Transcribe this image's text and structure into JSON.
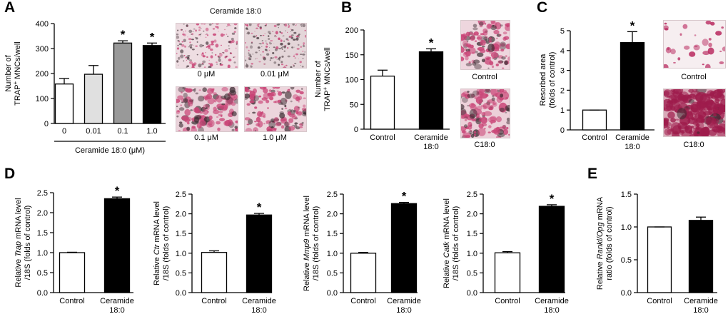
{
  "panel_labels": {
    "A": "A",
    "B": "B",
    "C": "C",
    "D": "D",
    "E": "E"
  },
  "micrographs": {
    "A_title": "Ceramide 18:0",
    "A_captions": [
      "0 μM",
      "0.01 μM",
      "0.1 μM",
      "1.0 μM"
    ],
    "B_captions": [
      "Control",
      "C18:0"
    ],
    "C_captions": [
      "Control",
      "C18:0"
    ]
  },
  "colors": {
    "white": "#ffffff",
    "light_gray": "#e0e0e0",
    "mid_gray": "#999999",
    "black": "#000000",
    "stain_pink": "#c94476"
  },
  "chart_data": [
    {
      "id": "A",
      "type": "bar",
      "ylabel_lines": [
        "Number of",
        "TRAP",
        "+",
        " MNCs/well"
      ],
      "categories": [
        "0",
        "0.01",
        "0.1",
        "1.0"
      ],
      "values": [
        158,
        197,
        322,
        312
      ],
      "errors": [
        22,
        35,
        9,
        10
      ],
      "significant": [
        false,
        false,
        true,
        true
      ],
      "bar_colors": [
        "#ffffff",
        "#e0e0e0",
        "#999999",
        "#000000"
      ],
      "xlabel": "Ceramide 18:0 (μM)",
      "ylim": [
        0,
        400
      ],
      "yticks": [
        0,
        100,
        200,
        300,
        400
      ],
      "ytick_labels": [
        "0",
        "100",
        "200",
        "300",
        "400"
      ]
    },
    {
      "id": "B",
      "type": "bar",
      "ylabel_lines": [
        "Number of",
        "TRAP",
        "+",
        " MNCs/well"
      ],
      "categories": [
        "Control",
        "Ceramide 18:0"
      ],
      "category_lines": [
        [
          "Control"
        ],
        [
          "Ceramide",
          "18:0"
        ]
      ],
      "values": [
        107,
        156
      ],
      "errors": [
        12,
        6
      ],
      "significant": [
        false,
        true
      ],
      "bar_colors": [
        "#ffffff",
        "#000000"
      ],
      "ylim": [
        0,
        200
      ],
      "yticks": [
        0,
        50,
        100,
        150,
        200
      ],
      "ytick_labels": [
        "0",
        "50",
        "100",
        "150",
        "200"
      ]
    },
    {
      "id": "C",
      "type": "bar",
      "ylabel_lines": [
        "Resorbed area",
        "(folds of control)"
      ],
      "categories": [
        "Control",
        "Ceramide 18:0"
      ],
      "category_lines": [
        [
          "Control"
        ],
        [
          "Ceramide",
          "18:0"
        ]
      ],
      "values": [
        1.0,
        4.4
      ],
      "errors": [
        0.0,
        0.55
      ],
      "significant": [
        false,
        true
      ],
      "bar_colors": [
        "#ffffff",
        "#000000"
      ],
      "ylim": [
        0,
        5
      ],
      "yticks": [
        0,
        1,
        2,
        3,
        4,
        5
      ],
      "ytick_labels": [
        "0",
        "1",
        "2",
        "3",
        "4",
        "5"
      ]
    },
    {
      "id": "D1",
      "type": "bar",
      "ylabel_prefix": "Relative ",
      "ylabel_gene": "Trap",
      "ylabel_suffix": " mRNA level",
      "ylabel_line2": "/18S (folds of control)",
      "categories": [
        "Control",
        "Ceramide 18:0"
      ],
      "category_lines": [
        [
          "Control"
        ],
        [
          "Ceramide",
          "18:0"
        ]
      ],
      "values": [
        1.0,
        2.35
      ],
      "errors": [
        0.01,
        0.04
      ],
      "significant": [
        false,
        true
      ],
      "bar_colors": [
        "#ffffff",
        "#000000"
      ],
      "ylim": [
        0,
        2.5
      ],
      "yticks": [
        0,
        0.5,
        1.0,
        1.5,
        2.0,
        2.5
      ],
      "ytick_labels": [
        "0.0",
        "0.5",
        "1.0",
        "1.5",
        "2.0",
        "2.5"
      ]
    },
    {
      "id": "D2",
      "type": "bar",
      "ylabel_prefix": "Relative ",
      "ylabel_gene": "Ctr",
      "ylabel_suffix": " mRNA level",
      "ylabel_line2": "/18S (folds of control)",
      "categories": [
        "Control",
        "Ceramide 18:0"
      ],
      "category_lines": [
        [
          "Control"
        ],
        [
          "Ceramide",
          "18:0"
        ]
      ],
      "values": [
        1.02,
        1.97
      ],
      "errors": [
        0.04,
        0.04
      ],
      "significant": [
        false,
        true
      ],
      "bar_colors": [
        "#ffffff",
        "#000000"
      ],
      "ylim": [
        0,
        2.5
      ],
      "yticks": [
        0,
        0.5,
        1.0,
        1.5,
        2.0,
        2.5
      ],
      "ytick_labels": [
        "0.0",
        "0.5",
        "1.0",
        "1.5",
        "2.0",
        "2.5"
      ]
    },
    {
      "id": "D3",
      "type": "bar",
      "ylabel_prefix": "Relative ",
      "ylabel_gene": "Mmp9",
      "ylabel_suffix": " mRNA level",
      "ylabel_line2": "/18S (folds of control)",
      "categories": [
        "Control",
        "Ceramide 18:0"
      ],
      "category_lines": [
        [
          "Control"
        ],
        [
          "Ceramide",
          "18:0"
        ]
      ],
      "values": [
        1.0,
        2.26
      ],
      "errors": [
        0.02,
        0.03
      ],
      "significant": [
        false,
        true
      ],
      "bar_colors": [
        "#ffffff",
        "#000000"
      ],
      "ylim": [
        0,
        2.5
      ],
      "yticks": [
        0,
        0.5,
        1.0,
        1.5,
        2.0,
        2.5
      ],
      "ytick_labels": [
        "0.0",
        "0.5",
        "1.0",
        "1.5",
        "2.0",
        "2.5"
      ]
    },
    {
      "id": "D4",
      "type": "bar",
      "ylabel_prefix": "Relative ",
      "ylabel_gene": "Catk",
      "ylabel_suffix": " mRNA level",
      "ylabel_line2": "/18S (folds of control)",
      "categories": [
        "Control",
        "Ceramide 18:0"
      ],
      "category_lines": [
        [
          "Control"
        ],
        [
          "Ceramide",
          "18:0"
        ]
      ],
      "values": [
        1.01,
        2.19
      ],
      "errors": [
        0.03,
        0.04
      ],
      "significant": [
        false,
        true
      ],
      "bar_colors": [
        "#ffffff",
        "#000000"
      ],
      "ylim": [
        0,
        2.5
      ],
      "yticks": [
        0,
        0.5,
        1.0,
        1.5,
        2.0,
        2.5
      ],
      "ytick_labels": [
        "0.0",
        "0.5",
        "1.0",
        "1.5",
        "2.0",
        "2.5"
      ]
    },
    {
      "id": "E",
      "type": "bar",
      "ylabel_prefix": "Relative ",
      "ylabel_gene": "Rankl/Opg",
      "ylabel_suffix": " mRNA",
      "ylabel_line2": "ratio (folds of control)",
      "categories": [
        "Control",
        "Ceramide 18:0"
      ],
      "category_lines": [
        [
          "Control"
        ],
        [
          "Ceramide",
          "18:0"
        ]
      ],
      "values": [
        1.0,
        1.1
      ],
      "errors": [
        0.0,
        0.05
      ],
      "significant": [
        false,
        false
      ],
      "bar_colors": [
        "#ffffff",
        "#000000"
      ],
      "ylim": [
        0,
        1.5
      ],
      "yticks": [
        0,
        0.5,
        1.0,
        1.5
      ],
      "ytick_labels": [
        "0.0",
        "0.5",
        "1.0",
        "1.5"
      ]
    }
  ]
}
